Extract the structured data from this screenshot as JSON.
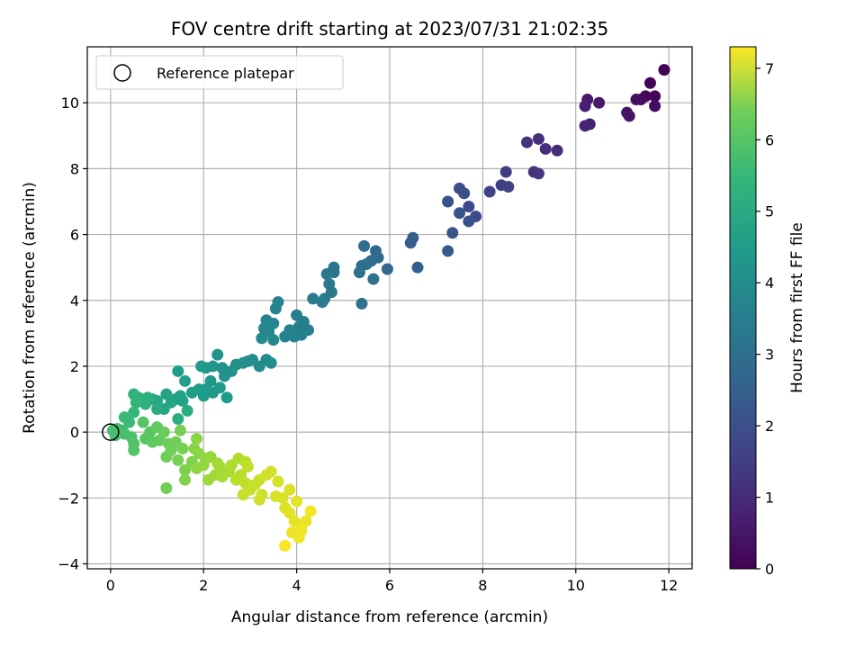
{
  "chart_data": {
    "type": "scatter",
    "title": "FOV centre drift starting at 2023/07/31 21:02:35",
    "xlabel": "Angular distance from reference (arcmin)",
    "ylabel": "Rotation from reference (arcmin)",
    "xlim": [
      -0.5,
      12.5
    ],
    "ylim": [
      -4.15,
      11.7
    ],
    "xticks": [
      0,
      2,
      4,
      6,
      8,
      10,
      12
    ],
    "yticks": [
      -4,
      -2,
      0,
      2,
      4,
      6,
      8,
      10
    ],
    "grid": true,
    "legend": {
      "position": "top-left",
      "entries": [
        "Reference platepar"
      ]
    },
    "reference_point": {
      "x": 0,
      "y": 0
    },
    "colorbar": {
      "label": "Hours from first FF file",
      "colormap": "viridis",
      "range": [
        0,
        7.3
      ],
      "ticks": [
        0,
        1,
        2,
        3,
        4,
        5,
        6,
        7
      ]
    },
    "series": [
      {
        "points": [
          {
            "x": 11.9,
            "y": 11.0,
            "c": 0.0
          },
          {
            "x": 11.6,
            "y": 10.6,
            "c": 0.05
          },
          {
            "x": 11.7,
            "y": 10.2,
            "c": 0.1
          },
          {
            "x": 11.5,
            "y": 10.2,
            "c": 0.15
          },
          {
            "x": 11.4,
            "y": 10.1,
            "c": 0.2
          },
          {
            "x": 11.7,
            "y": 9.9,
            "c": 0.25
          },
          {
            "x": 11.3,
            "y": 10.1,
            "c": 0.3
          },
          {
            "x": 11.1,
            "y": 9.7,
            "c": 0.35
          },
          {
            "x": 11.15,
            "y": 9.6,
            "c": 0.4
          },
          {
            "x": 10.5,
            "y": 10.0,
            "c": 0.5
          },
          {
            "x": 10.25,
            "y": 10.1,
            "c": 0.55
          },
          {
            "x": 10.2,
            "y": 9.9,
            "c": 0.6
          },
          {
            "x": 10.3,
            "y": 9.35,
            "c": 0.65
          },
          {
            "x": 10.2,
            "y": 9.3,
            "c": 0.7
          },
          {
            "x": 9.6,
            "y": 8.55,
            "c": 0.9
          },
          {
            "x": 9.35,
            "y": 8.6,
            "c": 0.95
          },
          {
            "x": 9.2,
            "y": 8.9,
            "c": 1.0
          },
          {
            "x": 8.95,
            "y": 8.8,
            "c": 1.05
          },
          {
            "x": 9.1,
            "y": 7.9,
            "c": 1.1
          },
          {
            "x": 9.2,
            "y": 7.85,
            "c": 1.15
          },
          {
            "x": 8.5,
            "y": 7.9,
            "c": 1.3
          },
          {
            "x": 8.4,
            "y": 7.5,
            "c": 1.35
          },
          {
            "x": 8.55,
            "y": 7.45,
            "c": 1.4
          },
          {
            "x": 8.15,
            "y": 7.3,
            "c": 1.45
          },
          {
            "x": 7.85,
            "y": 6.55,
            "c": 1.6
          },
          {
            "x": 7.7,
            "y": 6.85,
            "c": 1.65
          },
          {
            "x": 7.5,
            "y": 7.4,
            "c": 1.7
          },
          {
            "x": 7.6,
            "y": 7.25,
            "c": 1.75
          },
          {
            "x": 7.25,
            "y": 7.0,
            "c": 1.8
          },
          {
            "x": 7.7,
            "y": 6.4,
            "c": 1.85
          },
          {
            "x": 7.5,
            "y": 6.65,
            "c": 1.9
          },
          {
            "x": 7.35,
            "y": 6.05,
            "c": 1.95
          },
          {
            "x": 7.25,
            "y": 5.5,
            "c": 2.05
          },
          {
            "x": 6.5,
            "y": 5.9,
            "c": 2.15
          },
          {
            "x": 6.45,
            "y": 5.75,
            "c": 2.2
          },
          {
            "x": 6.6,
            "y": 5.0,
            "c": 2.3
          },
          {
            "x": 5.95,
            "y": 4.95,
            "c": 2.4
          },
          {
            "x": 5.7,
            "y": 5.5,
            "c": 2.45
          },
          {
            "x": 5.75,
            "y": 5.3,
            "c": 2.5
          },
          {
            "x": 5.6,
            "y": 5.2,
            "c": 2.55
          },
          {
            "x": 5.45,
            "y": 5.65,
            "c": 2.6
          },
          {
            "x": 5.5,
            "y": 5.1,
            "c": 2.62
          },
          {
            "x": 5.4,
            "y": 5.05,
            "c": 2.65
          },
          {
            "x": 5.35,
            "y": 4.85,
            "c": 2.7
          },
          {
            "x": 5.65,
            "y": 4.65,
            "c": 2.72
          },
          {
            "x": 5.4,
            "y": 3.9,
            "c": 2.78
          },
          {
            "x": 4.8,
            "y": 5.0,
            "c": 2.85
          },
          {
            "x": 4.8,
            "y": 4.85,
            "c": 2.88
          },
          {
            "x": 4.65,
            "y": 4.8,
            "c": 2.9
          },
          {
            "x": 4.7,
            "y": 4.5,
            "c": 2.95
          },
          {
            "x": 4.75,
            "y": 4.25,
            "c": 2.98
          },
          {
            "x": 4.6,
            "y": 4.05,
            "c": 3.0
          },
          {
            "x": 4.55,
            "y": 3.95,
            "c": 3.02
          },
          {
            "x": 4.35,
            "y": 4.05,
            "c": 3.05
          },
          {
            "x": 4.15,
            "y": 3.35,
            "c": 3.08
          },
          {
            "x": 4.25,
            "y": 3.1,
            "c": 3.1
          },
          {
            "x": 4.0,
            "y": 3.55,
            "c": 3.12
          },
          {
            "x": 4.05,
            "y": 3.2,
            "c": 3.15
          },
          {
            "x": 4.1,
            "y": 2.95,
            "c": 3.17
          },
          {
            "x": 3.95,
            "y": 2.9,
            "c": 3.2
          },
          {
            "x": 3.85,
            "y": 3.1,
            "c": 3.22
          },
          {
            "x": 3.75,
            "y": 2.9,
            "c": 3.25
          },
          {
            "x": 3.6,
            "y": 3.95,
            "c": 3.27
          },
          {
            "x": 3.55,
            "y": 3.75,
            "c": 3.3
          },
          {
            "x": 3.35,
            "y": 3.4,
            "c": 3.32
          },
          {
            "x": 3.5,
            "y": 3.3,
            "c": 3.35
          },
          {
            "x": 3.4,
            "y": 3.05,
            "c": 3.38
          },
          {
            "x": 3.3,
            "y": 3.15,
            "c": 3.4
          },
          {
            "x": 3.25,
            "y": 2.85,
            "c": 3.42
          },
          {
            "x": 3.5,
            "y": 2.8,
            "c": 3.45
          },
          {
            "x": 3.35,
            "y": 2.2,
            "c": 3.5
          },
          {
            "x": 3.45,
            "y": 2.1,
            "c": 3.52
          },
          {
            "x": 3.2,
            "y": 2.0,
            "c": 3.55
          },
          {
            "x": 3.05,
            "y": 2.2,
            "c": 3.58
          },
          {
            "x": 2.95,
            "y": 2.15,
            "c": 3.6
          },
          {
            "x": 2.85,
            "y": 2.1,
            "c": 3.62
          },
          {
            "x": 2.7,
            "y": 2.05,
            "c": 3.65
          },
          {
            "x": 2.6,
            "y": 1.85,
            "c": 3.7
          },
          {
            "x": 2.4,
            "y": 1.95,
            "c": 3.72
          },
          {
            "x": 2.45,
            "y": 1.7,
            "c": 3.75
          },
          {
            "x": 2.3,
            "y": 2.35,
            "c": 3.78
          },
          {
            "x": 2.2,
            "y": 2.0,
            "c": 3.8
          },
          {
            "x": 2.05,
            "y": 1.95,
            "c": 3.82
          },
          {
            "x": 2.15,
            "y": 1.55,
            "c": 3.85
          },
          {
            "x": 2.05,
            "y": 1.3,
            "c": 3.88
          },
          {
            "x": 2.35,
            "y": 1.35,
            "c": 3.9
          },
          {
            "x": 2.2,
            "y": 1.2,
            "c": 3.92
          },
          {
            "x": 1.95,
            "y": 2.0,
            "c": 3.95
          },
          {
            "x": 1.9,
            "y": 1.3,
            "c": 3.98
          },
          {
            "x": 2.5,
            "y": 1.05,
            "c": 4.0
          },
          {
            "x": 2.0,
            "y": 1.1,
            "c": 4.02
          },
          {
            "x": 1.75,
            "y": 1.2,
            "c": 4.05
          },
          {
            "x": 1.6,
            "y": 1.55,
            "c": 4.08
          },
          {
            "x": 1.45,
            "y": 1.85,
            "c": 4.1
          },
          {
            "x": 1.5,
            "y": 1.1,
            "c": 4.15
          },
          {
            "x": 1.4,
            "y": 1.0,
            "c": 4.2
          },
          {
            "x": 1.55,
            "y": 0.95,
            "c": 4.22
          },
          {
            "x": 1.2,
            "y": 1.15,
            "c": 4.25
          },
          {
            "x": 1.3,
            "y": 0.9,
            "c": 4.28
          },
          {
            "x": 1.15,
            "y": 0.7,
            "c": 4.3
          },
          {
            "x": 1.0,
            "y": 0.95,
            "c": 4.35
          },
          {
            "x": 0.9,
            "y": 1.0,
            "c": 4.4
          },
          {
            "x": 1.0,
            "y": 0.7,
            "c": 4.45
          },
          {
            "x": 1.65,
            "y": 0.65,
            "c": 4.5
          },
          {
            "x": 1.45,
            "y": 0.4,
            "c": 4.55
          },
          {
            "x": 0.8,
            "y": 1.05,
            "c": 4.6
          },
          {
            "x": 0.75,
            "y": 0.85,
            "c": 4.65
          },
          {
            "x": 0.6,
            "y": 1.05,
            "c": 4.7
          },
          {
            "x": 0.5,
            "y": 1.15,
            "c": 4.75
          },
          {
            "x": 0.55,
            "y": 0.9,
            "c": 4.8
          },
          {
            "x": 0.5,
            "y": 0.6,
            "c": 4.85
          },
          {
            "x": 0.3,
            "y": 0.45,
            "c": 4.9
          },
          {
            "x": 0.4,
            "y": 0.3,
            "c": 4.95
          },
          {
            "x": 0.25,
            "y": 0.05,
            "c": 5.0
          },
          {
            "x": 0.15,
            "y": 0.1,
            "c": 5.05
          },
          {
            "x": 0.05,
            "y": 0.05,
            "c": 5.1
          },
          {
            "x": 0.1,
            "y": -0.1,
            "c": 5.12
          },
          {
            "x": 0.3,
            "y": -0.05,
            "c": 5.15
          },
          {
            "x": 0.45,
            "y": -0.15,
            "c": 5.2
          },
          {
            "x": 0.5,
            "y": -0.35,
            "c": 5.25
          },
          {
            "x": 0.5,
            "y": -0.55,
            "c": 5.3
          },
          {
            "x": 0.7,
            "y": 0.3,
            "c": 5.32
          },
          {
            "x": 0.75,
            "y": -0.2,
            "c": 5.35
          },
          {
            "x": 0.85,
            "y": 0.0,
            "c": 5.4
          },
          {
            "x": 0.9,
            "y": -0.3,
            "c": 5.45
          },
          {
            "x": 1.0,
            "y": 0.15,
            "c": 5.5
          },
          {
            "x": 1.05,
            "y": -0.25,
            "c": 5.55
          },
          {
            "x": 1.15,
            "y": 0.0,
            "c": 5.6
          },
          {
            "x": 1.25,
            "y": -0.35,
            "c": 5.62
          },
          {
            "x": 1.2,
            "y": -0.75,
            "c": 5.65
          },
          {
            "x": 1.3,
            "y": -0.55,
            "c": 5.68
          },
          {
            "x": 1.4,
            "y": -0.3,
            "c": 5.7
          },
          {
            "x": 1.2,
            "y": -1.7,
            "c": 5.72
          },
          {
            "x": 1.5,
            "y": 0.05,
            "c": 5.75
          },
          {
            "x": 1.55,
            "y": -0.5,
            "c": 5.78
          },
          {
            "x": 1.45,
            "y": -0.85,
            "c": 5.8
          },
          {
            "x": 1.6,
            "y": -1.15,
            "c": 5.85
          },
          {
            "x": 1.6,
            "y": -1.45,
            "c": 5.88
          },
          {
            "x": 1.75,
            "y": -0.9,
            "c": 5.9
          },
          {
            "x": 1.8,
            "y": -0.5,
            "c": 5.95
          },
          {
            "x": 1.85,
            "y": -0.2,
            "c": 6.0
          },
          {
            "x": 1.9,
            "y": -0.65,
            "c": 6.02
          },
          {
            "x": 1.85,
            "y": -1.1,
            "c": 6.05
          },
          {
            "x": 2.05,
            "y": -0.8,
            "c": 6.08
          },
          {
            "x": 2.0,
            "y": -1.0,
            "c": 6.1
          },
          {
            "x": 2.15,
            "y": -0.75,
            "c": 6.15
          },
          {
            "x": 2.1,
            "y": -1.45,
            "c": 6.2
          },
          {
            "x": 2.25,
            "y": -1.3,
            "c": 6.22
          },
          {
            "x": 2.3,
            "y": -0.95,
            "c": 6.25
          },
          {
            "x": 2.35,
            "y": -1.05,
            "c": 6.3
          },
          {
            "x": 2.4,
            "y": -1.35,
            "c": 6.32
          },
          {
            "x": 2.55,
            "y": -1.2,
            "c": 6.35
          },
          {
            "x": 2.6,
            "y": -1.0,
            "c": 6.4
          },
          {
            "x": 2.75,
            "y": -0.8,
            "c": 6.45
          },
          {
            "x": 2.7,
            "y": -1.45,
            "c": 6.5
          },
          {
            "x": 2.8,
            "y": -1.3,
            "c": 6.52
          },
          {
            "x": 2.9,
            "y": -0.9,
            "c": 6.55
          },
          {
            "x": 2.95,
            "y": -1.05,
            "c": 6.6
          },
          {
            "x": 2.9,
            "y": -1.55,
            "c": 6.62
          },
          {
            "x": 3.0,
            "y": -1.75,
            "c": 6.65
          },
          {
            "x": 2.85,
            "y": -1.9,
            "c": 6.68
          },
          {
            "x": 3.1,
            "y": -1.6,
            "c": 6.7
          },
          {
            "x": 3.2,
            "y": -1.45,
            "c": 6.72
          },
          {
            "x": 3.25,
            "y": -1.9,
            "c": 6.75
          },
          {
            "x": 3.2,
            "y": -2.05,
            "c": 6.78
          },
          {
            "x": 3.35,
            "y": -1.3,
            "c": 6.8
          },
          {
            "x": 3.45,
            "y": -1.2,
            "c": 6.82
          },
          {
            "x": 3.6,
            "y": -1.5,
            "c": 6.85
          },
          {
            "x": 3.55,
            "y": -1.95,
            "c": 6.88
          },
          {
            "x": 3.7,
            "y": -2.0,
            "c": 6.9
          },
          {
            "x": 3.85,
            "y": -1.75,
            "c": 6.92
          },
          {
            "x": 3.75,
            "y": -2.3,
            "c": 6.95
          },
          {
            "x": 3.85,
            "y": -2.45,
            "c": 6.98
          },
          {
            "x": 4.0,
            "y": -2.1,
            "c": 7.0
          },
          {
            "x": 3.95,
            "y": -2.7,
            "c": 7.02
          },
          {
            "x": 4.1,
            "y": -2.85,
            "c": 7.05
          },
          {
            "x": 4.2,
            "y": -2.7,
            "c": 7.08
          },
          {
            "x": 3.9,
            "y": -3.05,
            "c": 7.1
          },
          {
            "x": 4.05,
            "y": -3.2,
            "c": 7.12
          },
          {
            "x": 4.1,
            "y": -3.0,
            "c": 7.15
          },
          {
            "x": 4.3,
            "y": -2.4,
            "c": 7.2
          },
          {
            "x": 3.75,
            "y": -3.45,
            "c": 7.25
          }
        ]
      }
    ]
  }
}
